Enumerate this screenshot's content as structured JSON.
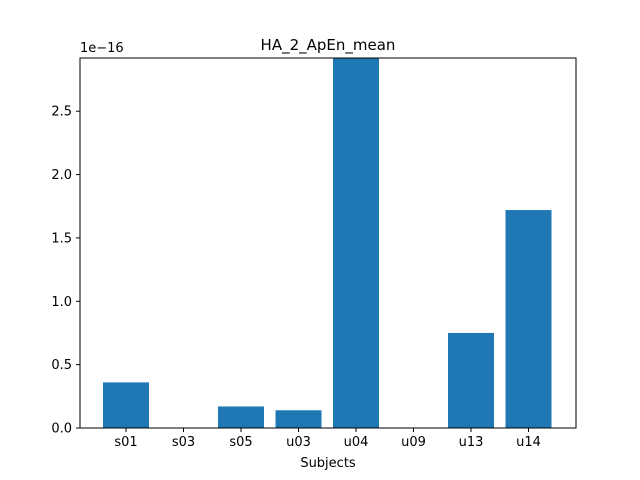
{
  "chart_data": {
    "type": "bar",
    "title": "HA_2_ApEn_mean",
    "xlabel": "Subjects",
    "ylabel": "",
    "scale_label": "1e−16",
    "categories": [
      "s01",
      "s03",
      "s05",
      "u03",
      "u04",
      "u09",
      "u13",
      "u14"
    ],
    "values": [
      0.36,
      0.0,
      0.17,
      0.14,
      2.92,
      0.0,
      0.75,
      1.72
    ],
    "ylim": [
      0,
      2.92
    ],
    "yticks": [
      0.0,
      0.5,
      1.0,
      1.5,
      2.0,
      2.5
    ],
    "ytick_labels": [
      "0.0",
      "0.5",
      "1.0",
      "1.5",
      "2.0",
      "2.5"
    ],
    "grid": false,
    "bar_color": "#1f77b4"
  }
}
